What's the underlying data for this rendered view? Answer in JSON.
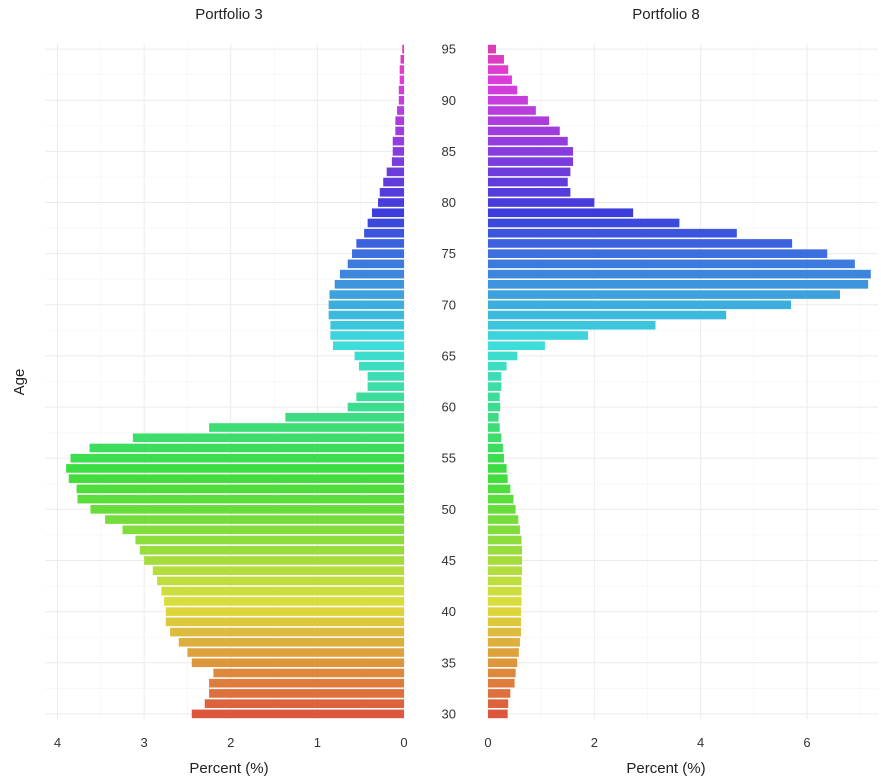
{
  "chart_data": {
    "type": "bar",
    "orientation": "horizontal",
    "ylabel": "Age",
    "y_ticks": [
      30,
      35,
      40,
      45,
      50,
      55,
      60,
      65,
      70,
      75,
      80,
      85,
      90,
      95
    ],
    "ylim": [
      30,
      95
    ],
    "grid": true,
    "color_scale": "hue by age",
    "panels": [
      {
        "title": "Portfolio  3",
        "xlabel": "Percent (%)",
        "x_reversed": true,
        "xlim": [
          0,
          4.05
        ],
        "x_ticks": [
          4,
          3,
          2,
          1,
          0
        ],
        "ages": [
          30,
          31,
          32,
          33,
          34,
          35,
          36,
          37,
          38,
          39,
          40,
          41,
          42,
          43,
          44,
          45,
          46,
          47,
          48,
          49,
          50,
          51,
          52,
          53,
          54,
          55,
          56,
          57,
          58,
          59,
          60,
          61,
          62,
          63,
          64,
          65,
          66,
          67,
          68,
          69,
          70,
          71,
          72,
          73,
          74,
          75,
          76,
          77,
          78,
          79,
          80,
          81,
          82,
          83,
          84,
          85,
          86,
          87,
          88,
          89,
          90,
          91,
          92,
          93,
          94,
          95
        ],
        "values": [
          2.45,
          2.3,
          2.25,
          2.25,
          2.2,
          2.45,
          2.5,
          2.6,
          2.7,
          2.75,
          2.75,
          2.77,
          2.8,
          2.85,
          2.9,
          3.0,
          3.05,
          3.1,
          3.25,
          3.45,
          3.62,
          3.77,
          3.78,
          3.87,
          3.9,
          3.85,
          3.63,
          3.13,
          2.25,
          1.37,
          0.65,
          0.55,
          0.42,
          0.42,
          0.52,
          0.57,
          0.82,
          0.85,
          0.85,
          0.87,
          0.87,
          0.86,
          0.8,
          0.74,
          0.65,
          0.6,
          0.55,
          0.46,
          0.42,
          0.37,
          0.3,
          0.28,
          0.24,
          0.2,
          0.14,
          0.13,
          0.13,
          0.1,
          0.1,
          0.08,
          0.06,
          0.06,
          0.05,
          0.05,
          0.04,
          0.02
        ]
      },
      {
        "title": "Portfolio  8",
        "xlabel": "Percent (%)",
        "x_reversed": false,
        "xlim": [
          0,
          7.35
        ],
        "x_ticks": [
          0,
          2,
          4,
          6
        ],
        "ages": [
          30,
          31,
          32,
          33,
          34,
          35,
          36,
          37,
          38,
          39,
          40,
          41,
          42,
          43,
          44,
          45,
          46,
          47,
          48,
          49,
          50,
          51,
          52,
          53,
          54,
          55,
          56,
          57,
          58,
          59,
          60,
          61,
          62,
          63,
          64,
          65,
          66,
          67,
          68,
          69,
          70,
          71,
          72,
          73,
          74,
          75,
          76,
          77,
          78,
          79,
          80,
          81,
          82,
          83,
          84,
          85,
          86,
          87,
          88,
          89,
          90,
          91,
          92,
          93,
          94,
          95
        ],
        "values": [
          0.37,
          0.38,
          0.42,
          0.5,
          0.52,
          0.55,
          0.58,
          0.6,
          0.62,
          0.62,
          0.62,
          0.63,
          0.63,
          0.63,
          0.64,
          0.64,
          0.64,
          0.63,
          0.6,
          0.57,
          0.52,
          0.48,
          0.42,
          0.37,
          0.35,
          0.3,
          0.28,
          0.25,
          0.22,
          0.2,
          0.23,
          0.22,
          0.25,
          0.25,
          0.35,
          0.55,
          1.07,
          1.88,
          3.15,
          4.48,
          5.7,
          6.62,
          7.15,
          7.2,
          6.9,
          6.38,
          5.72,
          4.68,
          3.6,
          2.73,
          2.0,
          1.55,
          1.5,
          1.55,
          1.6,
          1.6,
          1.5,
          1.35,
          1.15,
          0.9,
          0.75,
          0.55,
          0.45,
          0.38,
          0.3,
          0.15
        ]
      }
    ]
  }
}
